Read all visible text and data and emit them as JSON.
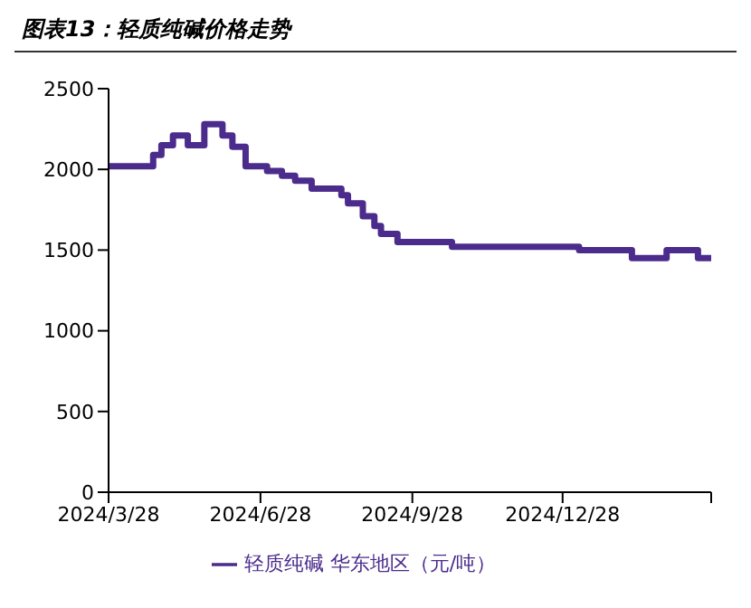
{
  "chart_data": {
    "type": "step",
    "title": "图表13：轻质纯碱价格走势",
    "x": [
      "2024-03-28",
      "2024-04-24",
      "2024-04-29",
      "2024-05-06",
      "2024-05-15",
      "2024-05-25",
      "2024-06-05",
      "2024-06-11",
      "2024-06-19",
      "2024-07-02",
      "2024-07-11",
      "2024-07-19",
      "2024-07-29",
      "2024-08-16",
      "2024-08-20",
      "2024-08-29",
      "2024-09-05",
      "2024-09-09",
      "2024-09-19",
      "2024-10-22",
      "2025-01-07",
      "2025-02-08",
      "2025-03-01",
      "2025-03-20",
      "2025-03-28"
    ],
    "series": [
      {
        "name": "轻质纯碱 华东地区（元/吨）",
        "color": "#4b2c8c",
        "values": [
          2020,
          2090,
          2150,
          2210,
          2150,
          2280,
          2210,
          2140,
          2020,
          1990,
          1960,
          1930,
          1880,
          1840,
          1790,
          1710,
          1650,
          1600,
          1550,
          1520,
          1500,
          1450,
          1500,
          1450,
          1450
        ]
      }
    ],
    "xlim": [
      "2024-03-28",
      "2025-03-28"
    ],
    "xticks": [
      {
        "value": "2024-03-28",
        "label": "2024/3/28"
      },
      {
        "value": "2024-06-28",
        "label": "2024/6/28"
      },
      {
        "value": "2024-09-28",
        "label": "2024/9/28"
      },
      {
        "value": "2024-12-28",
        "label": "2024/12/28"
      },
      {
        "value": "2025-03-28",
        "label": null
      }
    ],
    "ylim": [
      0,
      2500
    ],
    "yticks": [
      0,
      500,
      1000,
      1500,
      2000,
      2500
    ],
    "grid": false,
    "legend": "bottom",
    "marker": "none",
    "line_style": "solid"
  }
}
